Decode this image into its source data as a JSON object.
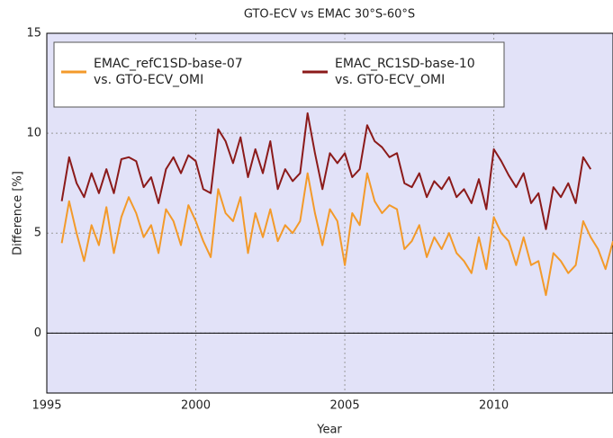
{
  "chart_data": {
    "type": "line",
    "title": "GTO-ECV vs EMAC 30°S-60°S",
    "xlabel": "Year",
    "ylabel": "Difference [%]",
    "x": [
      1995.5,
      1995.75,
      1996,
      1996.25,
      1996.5,
      1996.75,
      1997,
      1997.25,
      1997.5,
      1997.75,
      1998,
      1998.25,
      1998.5,
      1998.75,
      1999,
      1999.25,
      1999.5,
      1999.75,
      2000,
      2000.25,
      2000.5,
      2000.75,
      2001,
      2001.25,
      2001.5,
      2001.75,
      2002,
      2002.25,
      2002.5,
      2002.75,
      2003,
      2003.25,
      2003.5,
      2003.75,
      2004,
      2004.25,
      2004.5,
      2004.75,
      2005,
      2005.25,
      2005.5,
      2005.75,
      2006,
      2006.25,
      2006.5,
      2006.75,
      2007,
      2007.25,
      2007.5,
      2007.75,
      2008,
      2008.25,
      2008.5,
      2008.75,
      2009,
      2009.25,
      2009.5,
      2009.75,
      2010,
      2010.25,
      2010.5,
      2010.75,
      2011,
      2011.25,
      2011.5,
      2011.75,
      2012,
      2012.25,
      2012.5,
      2012.75,
      2013,
      2013.25,
      2013.5,
      2013.75,
      2014
    ],
    "series": [
      {
        "name": "EMAC_refC1SD-base-07 vs. GTO-ECV_OMI",
        "color": "#f39a2a",
        "values": [
          4.5,
          6.6,
          5.0,
          3.6,
          5.4,
          4.4,
          6.3,
          4.0,
          5.8,
          6.8,
          6.0,
          4.8,
          5.4,
          4.0,
          6.2,
          5.6,
          4.4,
          6.4,
          5.6,
          4.6,
          3.8,
          7.2,
          6.0,
          5.6,
          6.8,
          4.0,
          6.0,
          4.8,
          6.2,
          4.6,
          5.4,
          5.0,
          5.6,
          8.0,
          6.0,
          4.4,
          6.2,
          5.6,
          3.4,
          6.0,
          5.4,
          8.0,
          6.6,
          6.0,
          6.4,
          6.2,
          4.2,
          4.6,
          5.4,
          3.8,
          4.8,
          4.2,
          5.0,
          4.0,
          3.6,
          3.0,
          4.8,
          3.2,
          5.8,
          5.0,
          4.6,
          3.4,
          4.8,
          3.4,
          3.6,
          1.9,
          4.0,
          3.6,
          3.0,
          3.4,
          5.6,
          4.8,
          4.2,
          3.2,
          4.6
        ]
      },
      {
        "name": "EMAC_RC1SD-base-10 vs. GTO-ECV_OMI",
        "color": "#8b1a1a",
        "values": [
          6.6,
          8.8,
          7.5,
          6.8,
          8.0,
          7.0,
          8.2,
          7.0,
          8.7,
          8.8,
          8.6,
          7.3,
          7.8,
          6.5,
          8.2,
          8.8,
          8.0,
          8.9,
          8.6,
          7.2,
          7.0,
          10.2,
          9.6,
          8.5,
          9.8,
          7.8,
          9.2,
          8.0,
          9.6,
          7.2,
          8.2,
          7.6,
          8.0,
          11.0,
          9.0,
          7.2,
          9.0,
          8.5,
          9.0,
          7.8,
          8.2,
          10.4,
          9.6,
          9.3,
          8.8,
          9.0,
          7.5,
          7.3,
          8.0,
          6.8,
          7.6,
          7.2,
          7.8,
          6.8,
          7.2,
          6.5,
          7.7,
          6.2,
          9.2,
          8.6,
          7.9,
          7.3,
          8.0,
          6.5,
          7.0,
          5.2,
          7.3,
          6.8,
          7.5,
          6.5,
          8.8,
          8.2,
          null,
          null,
          null
        ]
      }
    ],
    "xlim": [
      1995,
      2014
    ],
    "xticks": [
      1995,
      2000,
      2005,
      2010
    ],
    "ylim": [
      -3,
      15
    ],
    "yticks": [
      0,
      5,
      10,
      15
    ],
    "grid": true
  }
}
